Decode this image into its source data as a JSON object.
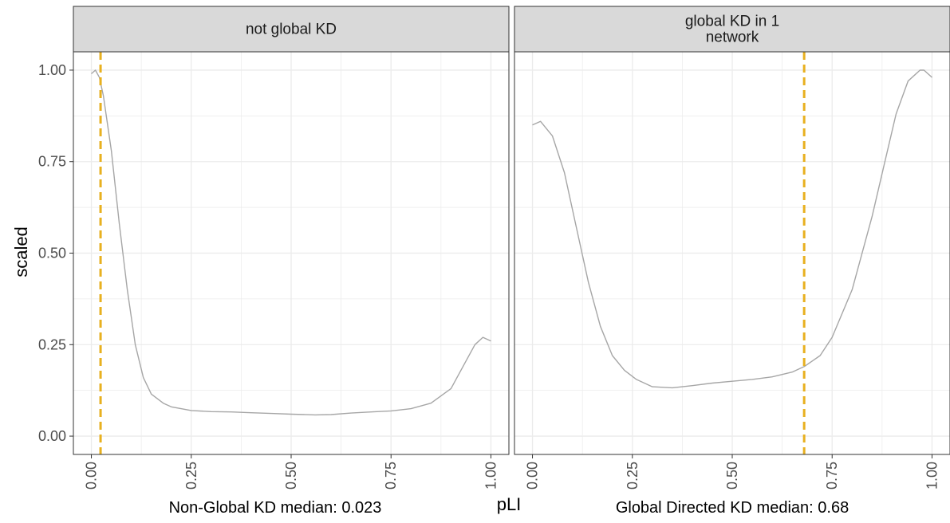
{
  "chart_data": {
    "type": "line",
    "xlabel": "pLI",
    "ylabel": "scaled",
    "xlim": [
      0,
      1
    ],
    "ylim": [
      0,
      1
    ],
    "x_ticks": [
      "0.00",
      "0.25",
      "0.50",
      "0.75",
      "1.00"
    ],
    "y_ticks": [
      "0.00",
      "0.25",
      "0.50",
      "0.75",
      "1.00"
    ],
    "grid": true,
    "colors": {
      "density_line": "#a6a6a6",
      "median_line": "#e8b01f",
      "strip_fill": "#d9d9d9",
      "grid": "#ebebeb"
    },
    "panels": [
      {
        "title": "not global KD",
        "annotation": "Non-Global KD median: 0.023",
        "median": 0.023,
        "x": [
          0.0,
          0.01,
          0.02,
          0.03,
          0.05,
          0.07,
          0.09,
          0.11,
          0.13,
          0.15,
          0.18,
          0.2,
          0.25,
          0.3,
          0.35,
          0.4,
          0.45,
          0.5,
          0.56,
          0.6,
          0.65,
          0.7,
          0.75,
          0.8,
          0.85,
          0.9,
          0.93,
          0.96,
          0.98,
          1.0
        ],
        "y": [
          0.99,
          1.0,
          0.98,
          0.93,
          0.78,
          0.58,
          0.4,
          0.25,
          0.16,
          0.115,
          0.09,
          0.08,
          0.07,
          0.067,
          0.066,
          0.064,
          0.062,
          0.06,
          0.058,
          0.059,
          0.063,
          0.066,
          0.069,
          0.075,
          0.09,
          0.13,
          0.19,
          0.25,
          0.27,
          0.26
        ]
      },
      {
        "title": "global KD in 1\nnetwork",
        "annotation": "Global Directed KD median: 0.68",
        "median": 0.68,
        "x": [
          0.0,
          0.02,
          0.05,
          0.08,
          0.11,
          0.14,
          0.17,
          0.2,
          0.23,
          0.26,
          0.3,
          0.35,
          0.4,
          0.45,
          0.5,
          0.55,
          0.6,
          0.65,
          0.68,
          0.72,
          0.75,
          0.8,
          0.85,
          0.88,
          0.91,
          0.94,
          0.97,
          0.98,
          1.0
        ],
        "y": [
          0.85,
          0.86,
          0.82,
          0.72,
          0.57,
          0.42,
          0.3,
          0.22,
          0.18,
          0.155,
          0.135,
          0.132,
          0.138,
          0.145,
          0.15,
          0.155,
          0.162,
          0.175,
          0.19,
          0.22,
          0.27,
          0.4,
          0.6,
          0.74,
          0.88,
          0.97,
          1.0,
          1.0,
          0.98
        ]
      }
    ]
  }
}
